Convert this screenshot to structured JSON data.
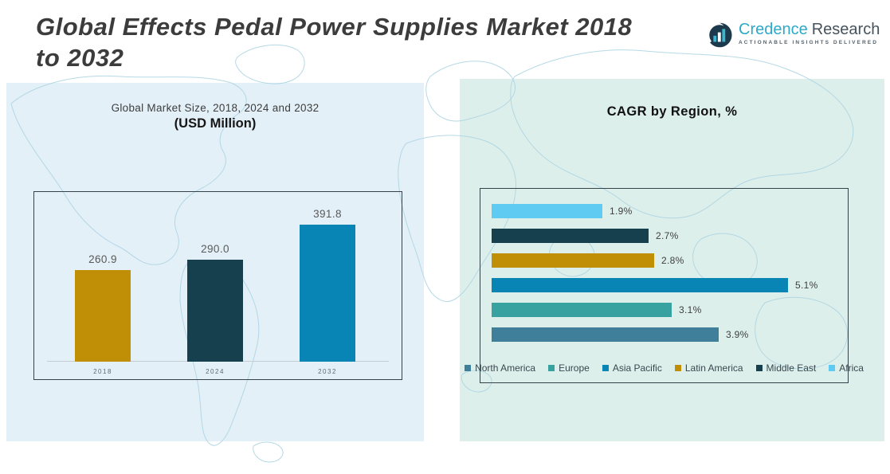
{
  "header": {
    "title_line1": "Global Effects Pedal Power Supplies Market 2018",
    "title_line2": "to 2032"
  },
  "logo": {
    "name_primary": "Credence",
    "name_secondary": "Research",
    "tagline": "ACTIONABLE INSIGHTS DELIVERED",
    "icon": "bar-chart-circle-icon",
    "color_primary": "#2ea9c8",
    "color_secondary": "#46535d",
    "icon_circle_color": "#1c3a4c",
    "icon_bar_color": "#3fb4cf"
  },
  "left_panel": {
    "title": "Global Market Size, 2018, 2024 and 2032",
    "subtitle": "(USD Million)"
  },
  "right_panel": {
    "title": "CAGR by Region, %"
  },
  "colors": {
    "gold": "#c08f05",
    "dark_navy": "#17404f",
    "blue": "#0884b5",
    "steel_blue": "#3f7f99",
    "teal": "#37a2a0",
    "light_blue": "#5fcbf2",
    "panel_left_bg": "#dfedf7",
    "panel_right_bg": "#d8ede9",
    "map_line": "#aed5e3"
  },
  "chart_data": [
    {
      "type": "bar",
      "orientation": "vertical",
      "title": "Global Market Size, 2018, 2024 and 2032 (USD Million)",
      "categories": [
        "2018",
        "2024",
        "2032"
      ],
      "values": [
        260.9,
        290.0,
        391.8
      ],
      "value_labels": [
        "260.9",
        "290.0",
        "391.8"
      ],
      "bar_colors": [
        "#c08f05",
        "#17404f",
        "#0884b5"
      ],
      "xlabel": "",
      "ylabel": "",
      "ylim": [
        0,
        400
      ],
      "grid": false,
      "legend_position": "none"
    },
    {
      "type": "bar",
      "orientation": "horizontal",
      "title": "CAGR by Region, %",
      "categories": [
        "Africa",
        "Middle East",
        "Latin America",
        "Asia Pacific",
        "Europe",
        "North America"
      ],
      "values": [
        1.9,
        2.7,
        2.8,
        5.1,
        3.1,
        3.9
      ],
      "value_labels": [
        "1.9%",
        "2.7%",
        "2.8%",
        "5.1%",
        "3.1%",
        "3.9%"
      ],
      "bar_colors": [
        "#5fcbf2",
        "#17404f",
        "#c08f05",
        "#0884b5",
        "#37a2a0",
        "#3f7f99"
      ],
      "xlabel": "",
      "ylabel": "",
      "xlim": [
        0,
        5.6
      ],
      "grid": false,
      "legend_position": "bottom",
      "legend": [
        {
          "label": "North America",
          "color": "#3f7f99"
        },
        {
          "label": "Europe",
          "color": "#37a2a0"
        },
        {
          "label": "Asia Pacific",
          "color": "#0884b5"
        },
        {
          "label": "Latin America",
          "color": "#c08f05"
        },
        {
          "label": "Middle East",
          "color": "#17404f"
        },
        {
          "label": "Africa",
          "color": "#5fcbf2"
        }
      ]
    }
  ]
}
